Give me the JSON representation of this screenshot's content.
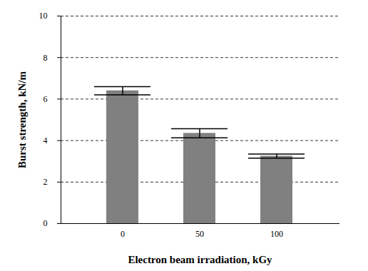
{
  "chart_data": {
    "type": "bar",
    "categories": [
      "0",
      "50",
      "100"
    ],
    "values": [
      6.4,
      4.35,
      3.25
    ],
    "errors": [
      0.2,
      0.22,
      0.1
    ],
    "color": "#808080",
    "x_label": "Electron beam irradiation, kGy",
    "y_label": "Burst strength, kN/m",
    "ylim": [
      0,
      10
    ],
    "yticks": [
      0,
      2,
      4,
      6,
      8,
      10
    ],
    "grid": true
  }
}
